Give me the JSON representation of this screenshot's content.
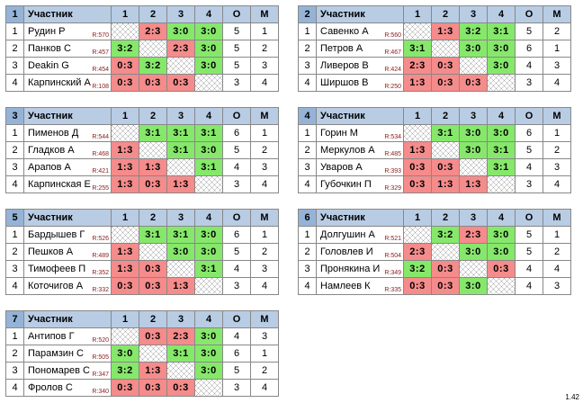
{
  "headers": {
    "participant": "Участник",
    "cols": [
      "1",
      "2",
      "3",
      "4"
    ],
    "o": "О",
    "m": "М"
  },
  "version": "1.42",
  "groups": [
    {
      "num": "1",
      "players": [
        {
          "idx": "1",
          "name": "Рудин Р",
          "rating": "R:570",
          "cells": [
            "",
            "2:3",
            "3:0",
            "3:0"
          ],
          "o": "5",
          "m": "1"
        },
        {
          "idx": "2",
          "name": "Панков С",
          "rating": "R:457",
          "cells": [
            "3:2",
            "",
            "2:3",
            "3:0"
          ],
          "o": "5",
          "m": "2"
        },
        {
          "idx": "3",
          "name": "Deakin G",
          "rating": "R:454",
          "cells": [
            "0:3",
            "3:2",
            "",
            "3:0"
          ],
          "o": "5",
          "m": "3"
        },
        {
          "idx": "4",
          "name": "Карпинский А",
          "rating": "R:108",
          "cells": [
            "0:3",
            "0:3",
            "0:3",
            ""
          ],
          "o": "3",
          "m": "4"
        }
      ]
    },
    {
      "num": "2",
      "players": [
        {
          "idx": "1",
          "name": "Савенко А",
          "rating": "R:560",
          "cells": [
            "",
            "1:3",
            "3:2",
            "3:1"
          ],
          "o": "5",
          "m": "2"
        },
        {
          "idx": "2",
          "name": "Петров А",
          "rating": "R:467",
          "cells": [
            "3:1",
            "",
            "3:0",
            "3:0"
          ],
          "o": "6",
          "m": "1"
        },
        {
          "idx": "3",
          "name": "Ливеров В",
          "rating": "R:424",
          "cells": [
            "2:3",
            "0:3",
            "",
            "3:0"
          ],
          "o": "4",
          "m": "3"
        },
        {
          "idx": "4",
          "name": "Ширшов В",
          "rating": "R:250",
          "cells": [
            "1:3",
            "0:3",
            "0:3",
            ""
          ],
          "o": "3",
          "m": "4"
        }
      ]
    },
    {
      "num": "3",
      "players": [
        {
          "idx": "1",
          "name": "Пименов Д",
          "rating": "R:544",
          "cells": [
            "",
            "3:1",
            "3:1",
            "3:1"
          ],
          "o": "6",
          "m": "1"
        },
        {
          "idx": "2",
          "name": "Гладков А",
          "rating": "R:468",
          "cells": [
            "1:3",
            "",
            "3:1",
            "3:0"
          ],
          "o": "5",
          "m": "2"
        },
        {
          "idx": "3",
          "name": "Арапов А",
          "rating": "R:421",
          "cells": [
            "1:3",
            "1:3",
            "",
            "3:1"
          ],
          "o": "4",
          "m": "3"
        },
        {
          "idx": "4",
          "name": "Карпинская Е",
          "rating": "R:255",
          "cells": [
            "1:3",
            "0:3",
            "1:3",
            ""
          ],
          "o": "3",
          "m": "4"
        }
      ]
    },
    {
      "num": "4",
      "players": [
        {
          "idx": "1",
          "name": "Горин М",
          "rating": "R:534",
          "cells": [
            "",
            "3:1",
            "3:0",
            "3:0"
          ],
          "o": "6",
          "m": "1"
        },
        {
          "idx": "2",
          "name": "Меркулов А",
          "rating": "R:485",
          "cells": [
            "1:3",
            "",
            "3:0",
            "3:1"
          ],
          "o": "5",
          "m": "2"
        },
        {
          "idx": "3",
          "name": "Уваров А",
          "rating": "R:393",
          "cells": [
            "0:3",
            "0:3",
            "",
            "3:1"
          ],
          "o": "4",
          "m": "3"
        },
        {
          "idx": "4",
          "name": "Губочкин П",
          "rating": "R:329",
          "cells": [
            "0:3",
            "1:3",
            "1:3",
            ""
          ],
          "o": "3",
          "m": "4"
        }
      ]
    },
    {
      "num": "5",
      "players": [
        {
          "idx": "1",
          "name": "Бардышев Г",
          "rating": "R:526",
          "cells": [
            "",
            "3:1",
            "3:1",
            "3:0"
          ],
          "o": "6",
          "m": "1"
        },
        {
          "idx": "2",
          "name": "Пешков А",
          "rating": "R:489",
          "cells": [
            "1:3",
            "",
            "3:0",
            "3:0"
          ],
          "o": "5",
          "m": "2"
        },
        {
          "idx": "3",
          "name": "Тимофеев П",
          "rating": "R:352",
          "cells": [
            "1:3",
            "0:3",
            "",
            "3:1"
          ],
          "o": "4",
          "m": "3"
        },
        {
          "idx": "4",
          "name": "Коточигов А",
          "rating": "R:332",
          "cells": [
            "0:3",
            "0:3",
            "1:3",
            ""
          ],
          "o": "3",
          "m": "4"
        }
      ]
    },
    {
      "num": "6",
      "players": [
        {
          "idx": "1",
          "name": "Долгушин А",
          "rating": "R:521",
          "cells": [
            "",
            "3:2",
            "2:3",
            "3:0"
          ],
          "o": "5",
          "m": "1"
        },
        {
          "idx": "2",
          "name": "Головлев И",
          "rating": "R:504",
          "cells": [
            "2:3",
            "",
            "3:0",
            "3:0"
          ],
          "o": "5",
          "m": "2"
        },
        {
          "idx": "3",
          "name": "Пронякина И",
          "rating": "R:349",
          "cells": [
            "3:2",
            "0:3",
            "",
            "0:3"
          ],
          "o": "4",
          "m": "4"
        },
        {
          "idx": "4",
          "name": "Намлеев К",
          "rating": "R:335",
          "cells": [
            "0:3",
            "0:3",
            "3:0",
            ""
          ],
          "o": "4",
          "m": "3"
        }
      ]
    },
    {
      "num": "7",
      "players": [
        {
          "idx": "1",
          "name": "Антипов Г",
          "rating": "R:520",
          "cells": [
            "",
            "0:3",
            "2:3",
            "3:0"
          ],
          "o": "4",
          "m": "3"
        },
        {
          "idx": "2",
          "name": "Парамзин С",
          "rating": "R:505",
          "cells": [
            "3:0",
            "",
            "3:1",
            "3:0"
          ],
          "o": "6",
          "m": "1"
        },
        {
          "idx": "3",
          "name": "Пономарев С",
          "rating": "R:347",
          "cells": [
            "3:2",
            "1:3",
            "",
            "3:0"
          ],
          "o": "5",
          "m": "2"
        },
        {
          "idx": "4",
          "name": "Фролов С",
          "rating": "R:340",
          "cells": [
            "0:3",
            "0:3",
            "0:3",
            ""
          ],
          "o": "3",
          "m": "4"
        }
      ]
    }
  ]
}
